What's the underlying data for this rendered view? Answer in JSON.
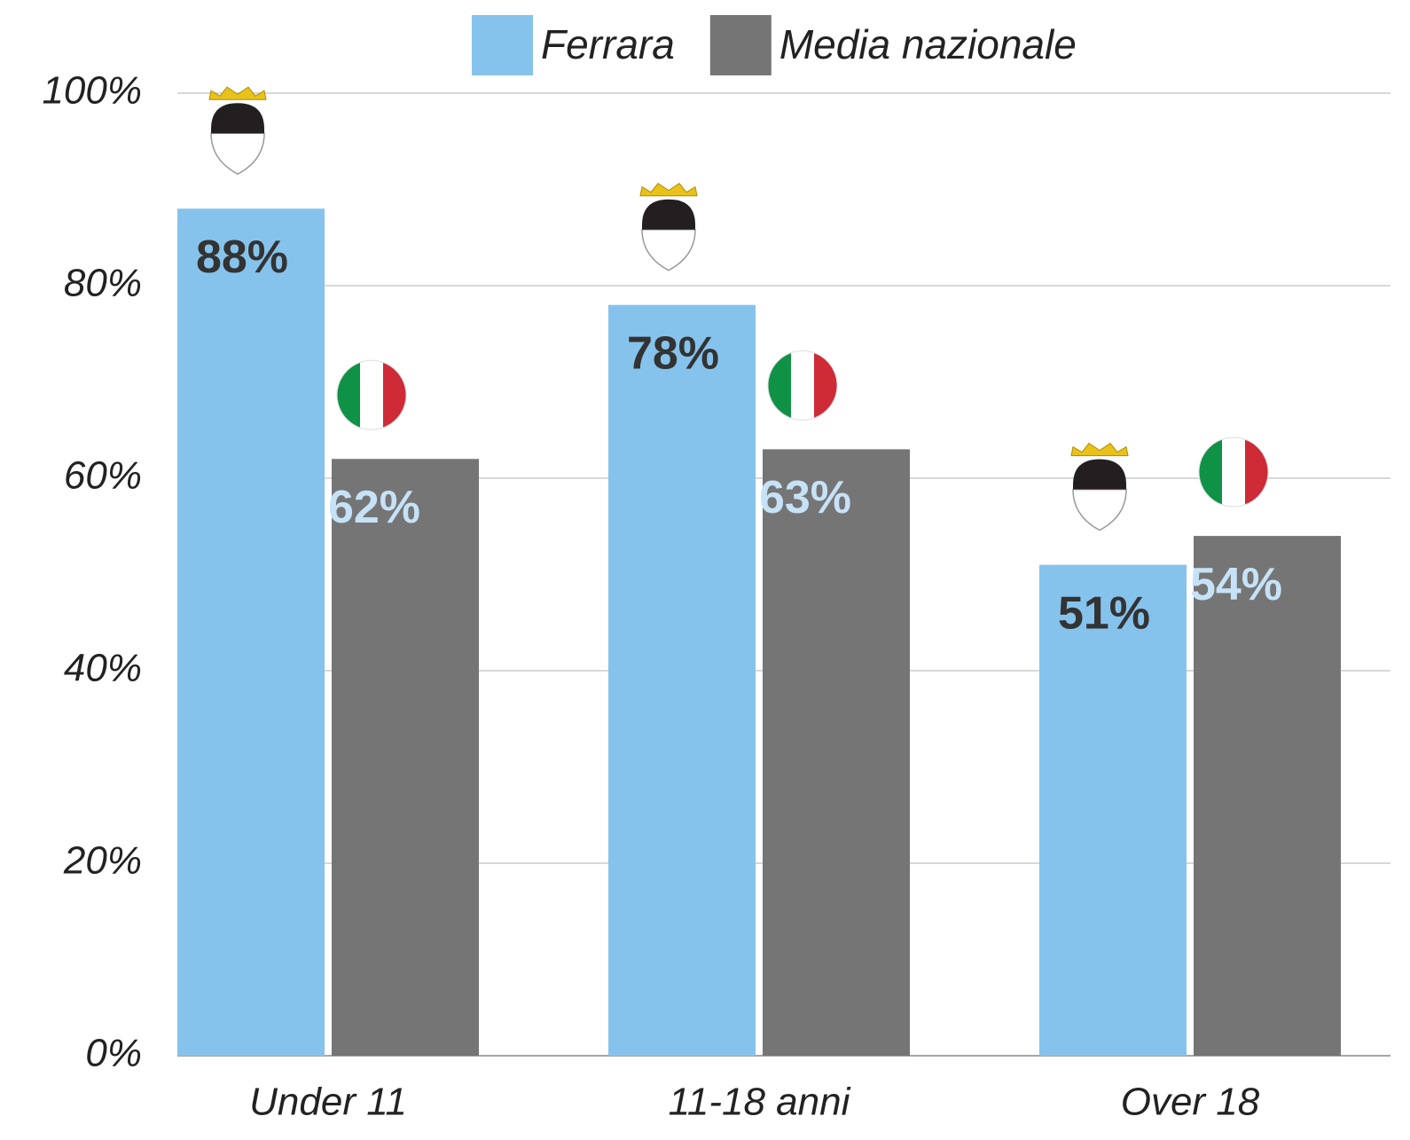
{
  "chart_data": {
    "type": "bar",
    "categories": [
      "Under 11",
      "11-18 anni",
      "Over 18"
    ],
    "series": [
      {
        "name": "Ferrara",
        "color": "#85c3ec",
        "values": [
          88,
          78,
          51
        ],
        "value_labels": [
          "88%",
          "78%",
          "51%"
        ]
      },
      {
        "name": "Media nazionale",
        "color": "#757575",
        "values": [
          62,
          63,
          54
        ],
        "value_labels": [
          "62%",
          "63%",
          "54%"
        ]
      }
    ],
    "ylim": [
      0,
      100
    ],
    "yticks": [
      {
        "value": 0,
        "label": "0%"
      },
      {
        "value": 20,
        "label": "20%"
      },
      {
        "value": 40,
        "label": "40%"
      },
      {
        "value": 60,
        "label": "60%"
      },
      {
        "value": 80,
        "label": "80%"
      },
      {
        "value": 100,
        "label": "100%"
      }
    ],
    "grid": true,
    "legend": "top"
  }
}
